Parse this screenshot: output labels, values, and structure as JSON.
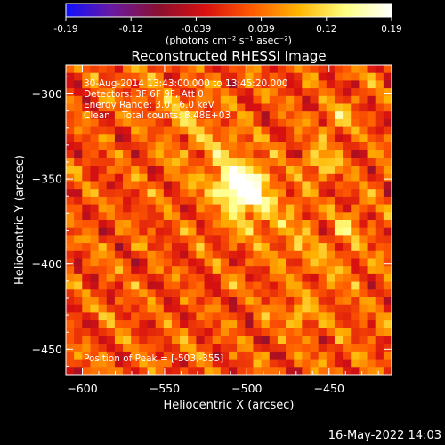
{
  "colorbar": {
    "ticks": [
      "-0.19",
      "-0.12",
      "-0.039",
      "0.039",
      "0.12",
      "0.19"
    ],
    "unit_label": "(photons cm⁻² s⁻¹ asec⁻²)",
    "range": [
      -0.19,
      0.19
    ],
    "colormap": [
      "#1010ff",
      "#6a1aa0",
      "#8a1030",
      "#d81010",
      "#ff5a00",
      "#ffb400",
      "#ffff80",
      "#ffffff"
    ]
  },
  "chart_data": {
    "type": "heatmap",
    "title": "Reconstructed RHESSI Image",
    "xlabel": "Heliocentric X (arcsec)",
    "ylabel": "Heliocentric Y (arcsec)",
    "xlim": [
      -610,
      -412
    ],
    "ylim": [
      -465,
      -283
    ],
    "xticks": [
      -600,
      -550,
      -500,
      -450
    ],
    "yticks": [
      -300,
      -350,
      -400,
      -450
    ],
    "info_lines": [
      "30-Aug-2014 13:43:00.000 to 13:45:20.000",
      "Detectors: 3F 6F 9F, Att 0",
      "Energy Range: 3.0 - 6.0 keV",
      "Clean    Total counts: 8.48E+03"
    ],
    "peak_label": "Position of Peak = [-503,-355]",
    "peak": [
      -503,
      -355
    ],
    "secondary_sources": [
      {
        "x": -455,
        "y": -340,
        "value": 0.1
      },
      {
        "x": -445,
        "y": -315,
        "value": 0.08
      },
      {
        "x": -470,
        "y": -430,
        "value": 0.07
      },
      {
        "x": -440,
        "y": -380,
        "value": 0.06
      }
    ]
  },
  "footer_timestamp": "16-May-2022 14:03"
}
